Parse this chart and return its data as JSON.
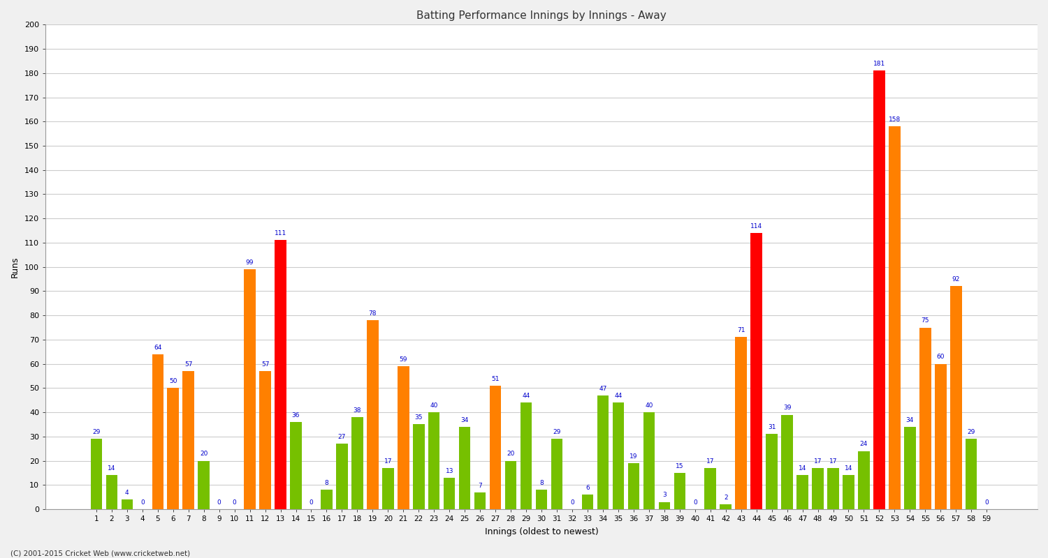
{
  "title": "Batting Performance Innings by Innings - Away",
  "xlabel": "Innings (oldest to newest)",
  "ylabel": "Runs",
  "ylim": [
    0,
    200
  ],
  "yticks": [
    0,
    10,
    20,
    30,
    40,
    50,
    60,
    70,
    80,
    90,
    100,
    110,
    120,
    130,
    140,
    150,
    160,
    170,
    180,
    190,
    200
  ],
  "innings": [
    1,
    2,
    3,
    4,
    5,
    6,
    7,
    8,
    9,
    10,
    11,
    12,
    13,
    14,
    15,
    16,
    17,
    18,
    19,
    20,
    21,
    22,
    23,
    24,
    25,
    26,
    27,
    28,
    29,
    30,
    31,
    32,
    33,
    34,
    35,
    36,
    37,
    38,
    39,
    40,
    41,
    42,
    43,
    44,
    45,
    46,
    47,
    48,
    49,
    50,
    51,
    52,
    53,
    54,
    55,
    56,
    57,
    58,
    59
  ],
  "values": [
    29,
    14,
    4,
    0,
    64,
    50,
    57,
    20,
    0,
    0,
    99,
    57,
    111,
    36,
    0,
    8,
    27,
    38,
    78,
    17,
    59,
    35,
    40,
    13,
    34,
    7,
    51,
    20,
    44,
    8,
    29,
    0,
    6,
    47,
    44,
    19,
    40,
    3,
    15,
    0,
    17,
    2,
    71,
    114,
    31,
    39,
    14,
    17,
    17,
    14,
    24,
    181,
    158,
    34,
    75,
    60,
    92,
    29,
    0
  ],
  "colors": [
    "#76c000",
    "#76c000",
    "#76c000",
    "#76c000",
    "#ff8000",
    "#ff8000",
    "#ff8000",
    "#76c000",
    "#76c000",
    "#76c000",
    "#ff8000",
    "#ff8000",
    "#ff0000",
    "#76c000",
    "#76c000",
    "#76c000",
    "#76c000",
    "#76c000",
    "#ff8000",
    "#76c000",
    "#ff8000",
    "#76c000",
    "#76c000",
    "#76c000",
    "#76c000",
    "#76c000",
    "#ff8000",
    "#76c000",
    "#76c000",
    "#76c000",
    "#76c000",
    "#76c000",
    "#76c000",
    "#76c000",
    "#76c000",
    "#76c000",
    "#76c000",
    "#76c000",
    "#76c000",
    "#76c000",
    "#76c000",
    "#76c000",
    "#ff8000",
    "#ff0000",
    "#76c000",
    "#76c000",
    "#76c000",
    "#76c000",
    "#76c000",
    "#76c000",
    "#76c000",
    "#ff0000",
    "#ff8000",
    "#76c000",
    "#ff8000",
    "#ff8000",
    "#ff8000",
    "#76c000",
    "#76c000"
  ],
  "label_color": "#0000cc",
  "plot_bg_color": "#ffffff",
  "fig_bg_color": "#f0f0f0",
  "grid_color": "#cccccc",
  "footer": "(C) 2001-2015 Cricket Web (www.cricketweb.net)"
}
